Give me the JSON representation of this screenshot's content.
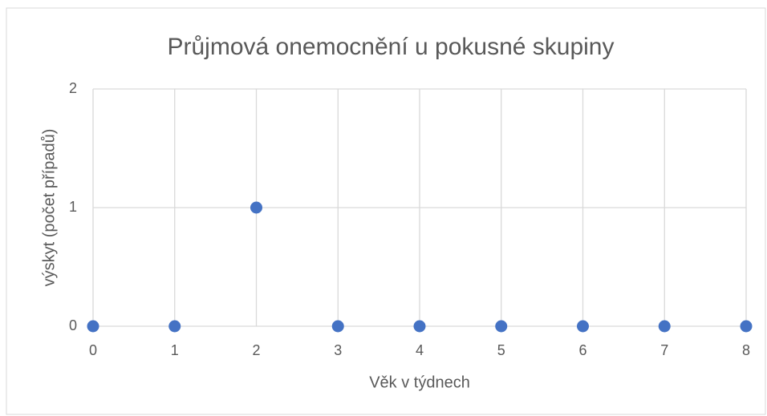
{
  "chart_data": {
    "type": "scatter",
    "title": "Průjmová onemocnění u pokusné skupiny",
    "x_label": "Věk v týdnech",
    "y_label": "výskyt (počet případů)",
    "x": [
      0,
      1,
      2,
      3,
      4,
      5,
      6,
      7,
      8
    ],
    "values": [
      0,
      0,
      1,
      0,
      0,
      0,
      0,
      0,
      0
    ],
    "color": "#4472c4",
    "xlim": [
      0,
      8
    ],
    "xticks": [
      0,
      1,
      2,
      3,
      4,
      5,
      6,
      7,
      8
    ],
    "ylim": [
      0,
      2
    ],
    "yticks": [
      0,
      1,
      2
    ],
    "grid": true
  }
}
